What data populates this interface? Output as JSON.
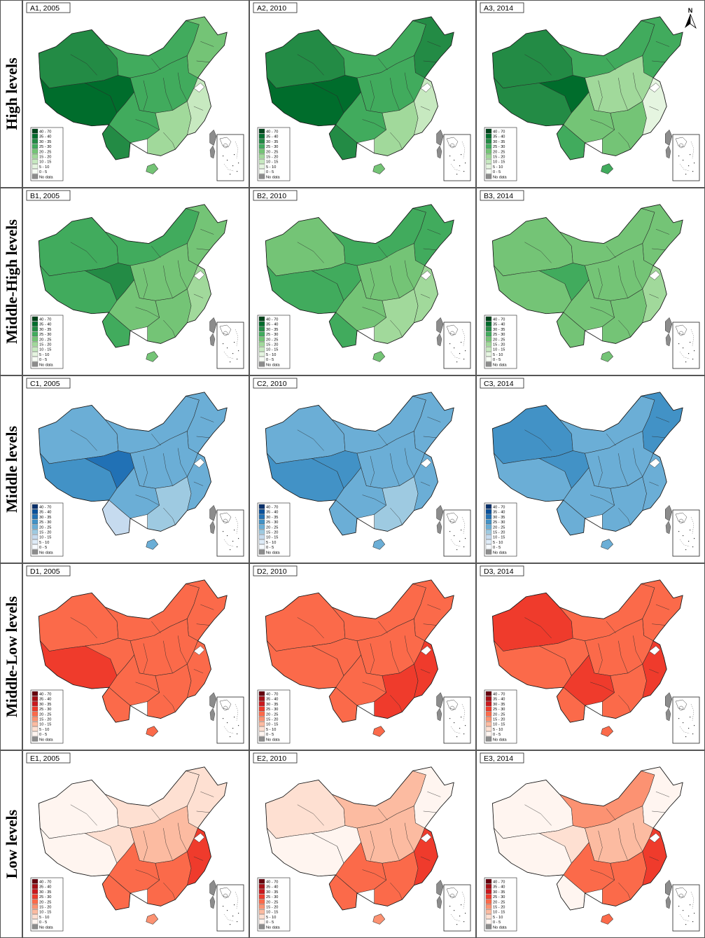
{
  "figure": {
    "legend_classes": [
      "40 - 70",
      "35 - 40",
      "30 - 35",
      "25 - 30",
      "20 - 25",
      "15 - 20",
      "10 - 15",
      "5 - 10",
      "0 - 5",
      "No data"
    ],
    "no_data_color": "#8c8c8c",
    "north_label": "N",
    "rows": [
      {
        "label": "High levels",
        "palette": [
          "#00441b",
          "#006d2c",
          "#238b45",
          "#41ab5d",
          "#74c476",
          "#a1d99b",
          "#c7e9c0",
          "#e5f5e0",
          "#f7fcf5"
        ],
        "panels": [
          {
            "title": "A1, 2005",
            "levels": {
              "nw": 2,
              "tibet": 1,
              "qh": 1,
              "im": 3,
              "ne": 4,
              "cen": 3,
              "sw": 3,
              "se": 5,
              "east": 6,
              "yun": 2,
              "hai": 4
            }
          },
          {
            "title": "A2, 2010",
            "levels": {
              "nw": 2,
              "tibet": 1,
              "qh": 1,
              "im": 3,
              "ne": 2,
              "cen": 3,
              "sw": 3,
              "se": 5,
              "east": 6,
              "yun": 2,
              "hai": 4
            }
          },
          {
            "title": "A3, 2014",
            "levels": {
              "nw": 2,
              "tibet": 2,
              "qh": 1,
              "im": 3,
              "ne": 3,
              "cen": 5,
              "sw": 4,
              "se": 4,
              "east": 7,
              "yun": 3,
              "hai": 3
            }
          }
        ]
      },
      {
        "label": "Middle-High levels",
        "palette": [
          "#00441b",
          "#006d2c",
          "#238b45",
          "#41ab5d",
          "#74c476",
          "#a1d99b",
          "#c7e9c0",
          "#e5f5e0",
          "#f7fcf5"
        ],
        "panels": [
          {
            "title": "B1, 2005",
            "levels": {
              "nw": 3,
              "tibet": 3,
              "qh": 2,
              "im": 3,
              "ne": 4,
              "cen": 4,
              "sw": 4,
              "se": 4,
              "east": 5,
              "yun": 3,
              "hai": 4
            }
          },
          {
            "title": "B2, 2010",
            "levels": {
              "nw": 4,
              "tibet": 3,
              "qh": 3,
              "im": 3,
              "ne": 3,
              "cen": 4,
              "sw": 4,
              "se": 5,
              "east": 5,
              "yun": 3,
              "hai": 4
            }
          },
          {
            "title": "B3, 2014",
            "levels": {
              "nw": 4,
              "tibet": 4,
              "qh": 3,
              "im": 4,
              "ne": 4,
              "cen": 4,
              "sw": 4,
              "se": 4,
              "east": 5,
              "yun": 4,
              "hai": 4
            }
          }
        ]
      },
      {
        "label": "Middle levels",
        "palette": [
          "#08306b",
          "#08519c",
          "#2171b5",
          "#4292c6",
          "#6baed6",
          "#9ecae1",
          "#c6dbef",
          "#deebf7",
          "#f7fbff"
        ],
        "panels": [
          {
            "title": "C1, 2005",
            "levels": {
              "nw": 4,
              "tibet": 3,
              "qh": 2,
              "im": 4,
              "ne": 4,
              "cen": 4,
              "sw": 4,
              "se": 5,
              "east": 4,
              "yun": 6,
              "hai": 4
            }
          },
          {
            "title": "C2, 2010",
            "levels": {
              "nw": 4,
              "tibet": 3,
              "qh": 3,
              "im": 4,
              "ne": 4,
              "cen": 4,
              "sw": 4,
              "se": 5,
              "east": 4,
              "yun": 4,
              "hai": 4
            }
          },
          {
            "title": "C3, 2014",
            "levels": {
              "nw": 3,
              "tibet": 4,
              "qh": 3,
              "im": 4,
              "ne": 3,
              "cen": 4,
              "sw": 4,
              "se": 4,
              "east": 4,
              "yun": 4,
              "hai": 4
            }
          }
        ]
      },
      {
        "label": "Middle-Low levels",
        "palette": [
          "#67000d",
          "#a50f15",
          "#cb181d",
          "#ef3b2c",
          "#fb6a4a",
          "#fc9272",
          "#fcbba1",
          "#fee0d2",
          "#fff5f0"
        ],
        "panels": [
          {
            "title": "D1, 2005",
            "levels": {
              "nw": 4,
              "tibet": 3,
              "qh": 4,
              "im": 4,
              "ne": 4,
              "cen": 4,
              "sw": 4,
              "se": 4,
              "east": 4,
              "yun": 4,
              "hai": 4
            }
          },
          {
            "title": "D2, 2010",
            "levels": {
              "nw": 4,
              "tibet": 4,
              "qh": 4,
              "im": 4,
              "ne": 4,
              "cen": 4,
              "sw": 4,
              "se": 3,
              "east": 3,
              "yun": 4,
              "hai": 4
            }
          },
          {
            "title": "D3, 2014",
            "levels": {
              "nw": 3,
              "tibet": 4,
              "qh": 4,
              "im": 4,
              "ne": 4,
              "cen": 4,
              "sw": 3,
              "se": 4,
              "east": 3,
              "yun": 4,
              "hai": 4
            }
          }
        ]
      },
      {
        "label": "Low levels",
        "palette": [
          "#67000d",
          "#a50f15",
          "#cb181d",
          "#ef3b2c",
          "#fb6a4a",
          "#fc9272",
          "#fcbba1",
          "#fee0d2",
          "#fff5f0"
        ],
        "panels": [
          {
            "title": "E1, 2005",
            "levels": {
              "nw": 8,
              "tibet": 8,
              "qh": 7,
              "im": 7,
              "ne": 7,
              "cen": 6,
              "sw": 4,
              "se": 4,
              "east": 3,
              "yun": 4,
              "hai": 5
            }
          },
          {
            "title": "E2, 2010",
            "levels": {
              "nw": 7,
              "tibet": 8,
              "qh": 8,
              "im": 6,
              "ne": 8,
              "cen": 6,
              "sw": 4,
              "se": 4,
              "east": 3,
              "yun": 4,
              "hai": 5
            }
          },
          {
            "title": "E3, 2014",
            "levels": {
              "nw": 8,
              "tibet": 8,
              "qh": 7,
              "im": 5,
              "ne": 8,
              "cen": 6,
              "sw": 4,
              "se": 4,
              "east": 3,
              "yun": 8,
              "hai": 4
            }
          }
        ]
      }
    ]
  }
}
